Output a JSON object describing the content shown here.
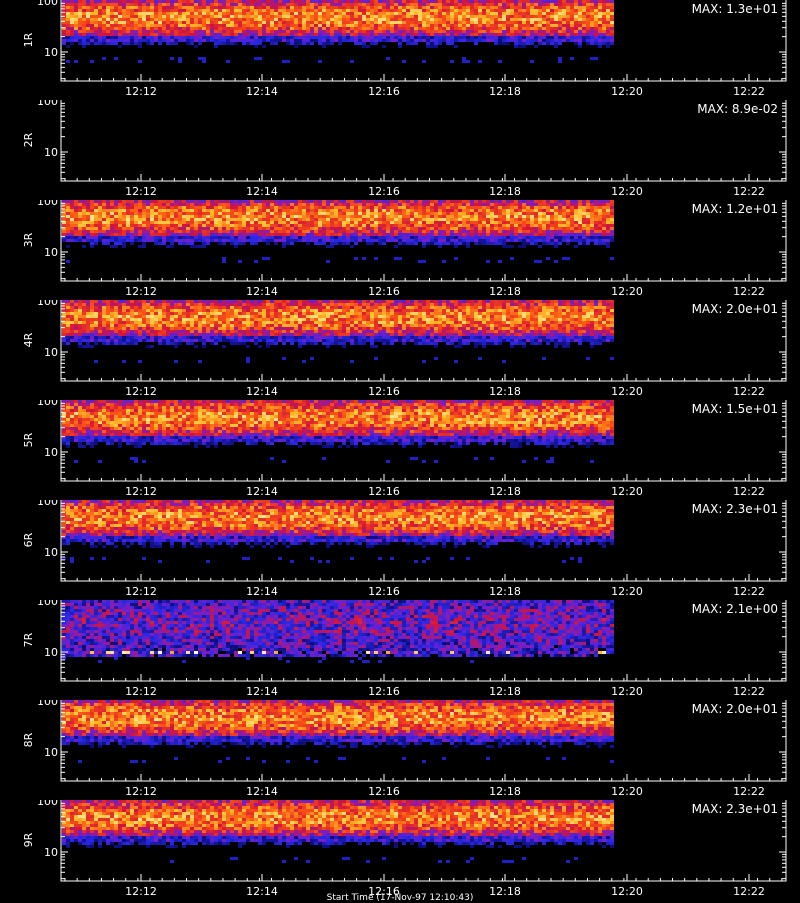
{
  "chart_data": [
    {
      "type": "heatmap",
      "panel_label": "1R",
      "max_label": "MAX: 1.3e+01",
      "y_ticks": [
        "100",
        "10"
      ],
      "x_ticks": [
        "12:12",
        "12:14",
        "12:16",
        "12:18",
        "12:20",
        "12:22"
      ],
      "seed": 11,
      "intensity": "strong"
    },
    {
      "type": "heatmap",
      "panel_label": "2R",
      "max_label": "MAX: 8.9e-02",
      "y_ticks": [
        "100",
        "10"
      ],
      "x_ticks": [
        "12:12",
        "12:14",
        "12:16",
        "12:18",
        "12:20",
        "12:22"
      ],
      "seed": 22,
      "intensity": "empty"
    },
    {
      "type": "heatmap",
      "panel_label": "3R",
      "max_label": "MAX: 1.2e+01",
      "y_ticks": [
        "100",
        "10"
      ],
      "x_ticks": [
        "12:12",
        "12:14",
        "12:16",
        "12:18",
        "12:20",
        "12:22"
      ],
      "seed": 33,
      "intensity": "strong"
    },
    {
      "type": "heatmap",
      "panel_label": "4R",
      "max_label": "MAX: 2.0e+01",
      "y_ticks": [
        "100",
        "10"
      ],
      "x_ticks": [
        "12:12",
        "12:14",
        "12:16",
        "12:18",
        "12:20",
        "12:22"
      ],
      "seed": 44,
      "intensity": "strong"
    },
    {
      "type": "heatmap",
      "panel_label": "5R",
      "max_label": "MAX: 1.5e+01",
      "y_ticks": [
        "100",
        "10"
      ],
      "x_ticks": [
        "12:12",
        "12:14",
        "12:16",
        "12:18",
        "12:20",
        "12:22"
      ],
      "seed": 55,
      "intensity": "strong"
    },
    {
      "type": "heatmap",
      "panel_label": "6R",
      "max_label": "MAX: 2.3e+01",
      "y_ticks": [
        "100",
        "10"
      ],
      "x_ticks": [
        "12:12",
        "12:14",
        "12:16",
        "12:18",
        "12:20",
        "12:22"
      ],
      "seed": 66,
      "intensity": "strong"
    },
    {
      "type": "heatmap",
      "panel_label": "7R",
      "max_label": "MAX: 2.1e+00",
      "y_ticks": [
        "100",
        "10"
      ],
      "x_ticks": [
        "12:12",
        "12:14",
        "12:16",
        "12:18",
        "12:20",
        "12:22"
      ],
      "seed": 77,
      "intensity": "noisy"
    },
    {
      "type": "heatmap",
      "panel_label": "8R",
      "max_label": "MAX: 2.0e+01",
      "y_ticks": [
        "100",
        "10"
      ],
      "x_ticks": [
        "12:12",
        "12:14",
        "12:16",
        "12:18",
        "12:20",
        "12:22"
      ],
      "seed": 88,
      "intensity": "strong"
    },
    {
      "type": "heatmap",
      "panel_label": "9R",
      "max_label": "MAX: 2.3e+01",
      "y_ticks": [
        "100",
        "10"
      ],
      "x_ticks": [
        "12:12",
        "12:14",
        "12:16",
        "12:18",
        "12:20",
        "12:22"
      ],
      "seed": 99,
      "intensity": "strong"
    }
  ],
  "footer_text": "Start Time (17-Nov-97 12:10:43)",
  "colors": {
    "background": "#000000",
    "axis": "#ffffff",
    "text": "#ffffff"
  }
}
